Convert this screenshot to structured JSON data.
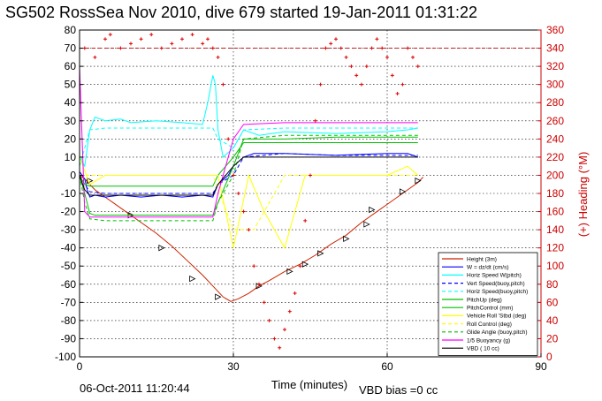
{
  "chart_data": {
    "type": "line",
    "title": "SG502 RossSea Nov 2010, dive 679 started 19-Jan-2011 01:31:22",
    "xlabel": "Time (minutes)",
    "ylabel_right": "(+) Heading (°M)",
    "footer_date": "06-Oct-2011 11:20:44",
    "footer_bias": "VBD bias =0 cc",
    "xlim": [
      0,
      90
    ],
    "ylim": [
      -100,
      80
    ],
    "ylim_right": [
      0,
      360
    ],
    "xticks": [
      0,
      30,
      60,
      90
    ],
    "yticks": [
      80,
      70,
      60,
      50,
      40,
      30,
      20,
      10,
      0,
      -10,
      -20,
      -30,
      -40,
      -50,
      -60,
      -70,
      -80,
      -90,
      -100
    ],
    "yticks_right": [
      360,
      340,
      320,
      300,
      280,
      260,
      240,
      220,
      200,
      180,
      160,
      140,
      120,
      100,
      80,
      60,
      40,
      20,
      0
    ],
    "grid": true,
    "legend_position": "bottom-right",
    "colors": {
      "black": "#000000",
      "red": "#ff0000",
      "blue": "#0000ff",
      "cyan": "#00ffff",
      "green": "#00c000",
      "yellow": "#ffff00",
      "magenta": "#ff00ff",
      "dark_red": "#cc0000",
      "orange_line": "#cc2200",
      "heading": "#dd0000"
    },
    "legend": [
      "Height (3m)",
      "W = dz/dt (cm/s)",
      "Horiz Speed W(pitch)",
      "Vert Speed(buoy,pitch)",
      "Horiz Speed(buoy,pitch)",
      "PitchUp (deg)",
      "PitchControl (mm)",
      "Vehicle Roll 'Stbd (deg)",
      "Roll Control (deg)",
      "Glide Angle (buoy,pitch)",
      "1/5 Buoyancy (g)",
      "VBD ( 10 cc)"
    ],
    "series": [
      {
        "name": "Height (3m)",
        "style": "line-red-markers",
        "x": [
          0,
          1,
          2,
          3,
          5,
          8,
          10,
          12,
          15,
          18,
          21,
          24,
          26,
          28,
          29.5,
          31,
          33,
          35,
          37,
          40,
          43,
          46,
          49,
          52,
          55,
          58,
          61,
          64,
          66,
          67
        ],
        "y": [
          0,
          -2,
          -5,
          -8,
          -12,
          -18,
          -22,
          -26,
          -32,
          -39,
          -47,
          -55,
          -61,
          -67,
          -69.5,
          -68,
          -65,
          -61,
          -58,
          -53,
          -49,
          -44,
          -38,
          -33,
          -26,
          -20,
          -14,
          -8,
          -4,
          -1
        ],
        "markers_x": [
          2,
          10,
          16,
          22,
          27,
          35,
          41,
          44,
          47,
          52,
          56,
          57,
          63,
          66
        ],
        "markers_y": [
          -3,
          -22,
          -40,
          -57,
          -67,
          -61,
          -53,
          -49,
          -43,
          -35,
          -27,
          -19,
          -9,
          -3
        ]
      },
      {
        "name": "W = dz/dt (cm/s)",
        "x": [
          0,
          1,
          1.5,
          2,
          3,
          5,
          8,
          12,
          16,
          20,
          24,
          26,
          27,
          29,
          30,
          32,
          34,
          40,
          50,
          60,
          64,
          66
        ],
        "y": [
          2,
          -2,
          -8,
          -12,
          -11,
          -12,
          -11,
          -12,
          -11,
          -12,
          -11,
          -12,
          -5,
          0,
          5,
          10,
          12,
          12,
          11,
          12,
          12,
          10
        ]
      },
      {
        "name": "Horiz Speed W(pitch)",
        "x": [
          0,
          1,
          2,
          3,
          5,
          8,
          10,
          15,
          20,
          24,
          25,
          26,
          26.5,
          27,
          28,
          30,
          32,
          35,
          40,
          50,
          60,
          64,
          66
        ],
        "y": [
          10,
          5,
          25,
          32,
          30,
          31,
          29,
          30,
          29,
          28,
          40,
          55,
          50,
          25,
          10,
          15,
          25,
          22,
          24,
          23,
          24,
          25,
          26
        ]
      },
      {
        "name": "Vert Speed(buoy,pitch)",
        "x": [
          0,
          1,
          2,
          5,
          10,
          20,
          26,
          27,
          30,
          32,
          40,
          50,
          60,
          66
        ],
        "y": [
          0,
          -5,
          -9,
          -10,
          -10,
          -10,
          -10,
          -5,
          0,
          10,
          12,
          11,
          11,
          11
        ]
      },
      {
        "name": "Horiz Speed(buoy,pitch)",
        "x": [
          0,
          1,
          2,
          5,
          10,
          20,
          26,
          27,
          30,
          32,
          40,
          50,
          60,
          66
        ],
        "y": [
          5,
          15,
          25,
          26,
          26,
          26,
          26,
          20,
          15,
          25,
          26,
          26,
          26,
          26
        ]
      },
      {
        "name": "PitchUp (deg)",
        "x": [
          0,
          1,
          2,
          3,
          10,
          20,
          26,
          27,
          30,
          32,
          40,
          50,
          60,
          66
        ],
        "y": [
          0,
          -10,
          -21,
          -22,
          -22,
          -22,
          -22,
          -15,
          5,
          20,
          20,
          21,
          21,
          21
        ]
      },
      {
        "name": "PitchControl (mm)",
        "x": [
          0,
          1,
          2,
          3,
          10,
          20,
          26,
          27,
          30,
          32,
          40,
          50,
          60,
          66
        ],
        "y": [
          0,
          -5,
          -6,
          -6,
          -6,
          -6,
          -6,
          0,
          10,
          18,
          18,
          18,
          18,
          18
        ]
      },
      {
        "name": "Vehicle Roll 'Stbd (deg)",
        "x": [
          0,
          2,
          5,
          8,
          10,
          14,
          18,
          22,
          26,
          27,
          30,
          33,
          36,
          40,
          44,
          48,
          52,
          56,
          60,
          64,
          66
        ],
        "y": [
          10,
          -5,
          0,
          0,
          0,
          0,
          0,
          0,
          0,
          0,
          -40,
          0,
          -20,
          -40,
          0,
          0,
          0,
          0,
          0,
          5,
          0
        ]
      },
      {
        "name": "Roll Control (deg)",
        "x": [
          0,
          5,
          10,
          20,
          26,
          30,
          34,
          40,
          50,
          60,
          66
        ],
        "y": [
          0,
          0,
          0,
          0,
          0,
          -30,
          -30,
          0,
          0,
          0,
          0
        ]
      },
      {
        "name": "Glide Angle (buoy,pitch)",
        "x": [
          0,
          1,
          2,
          5,
          10,
          20,
          26,
          27,
          30,
          32,
          40,
          50,
          60,
          66
        ],
        "y": [
          0,
          -15,
          -24,
          -25,
          -25,
          -25,
          -25,
          -15,
          0,
          20,
          22,
          22,
          22,
          22
        ]
      },
      {
        "name": "1/5 Buoyancy (g)",
        "x": [
          0,
          1,
          2,
          5,
          10,
          20,
          26,
          27,
          30,
          32,
          40,
          50,
          60,
          66
        ],
        "y": [
          60,
          -20,
          -23,
          -23,
          -23,
          -23,
          -23,
          -10,
          20,
          28,
          29,
          29,
          29,
          29
        ]
      },
      {
        "name": "VBD ( 10 cc)",
        "x": [
          0,
          1,
          2,
          5,
          10,
          20,
          26,
          27,
          30,
          32,
          40,
          50,
          60,
          66
        ],
        "y": [
          0,
          -8,
          -11,
          -11,
          -11,
          -11,
          -11,
          -5,
          5,
          10,
          10,
          10,
          10,
          10
        ]
      },
      {
        "name": "Heading",
        "axis": "right",
        "x": [
          1,
          3,
          5,
          6,
          8,
          10,
          12,
          14,
          16,
          18,
          20,
          22,
          24,
          25,
          26,
          27,
          28,
          29,
          30,
          31,
          32,
          33,
          34,
          35,
          36,
          37,
          38,
          39,
          40,
          41,
          42,
          43,
          44,
          45,
          46,
          47,
          48,
          49,
          50,
          51,
          52,
          53,
          54,
          55,
          56,
          57,
          58,
          59,
          60,
          61,
          62,
          63,
          64,
          65,
          66
        ],
        "y": [
          340,
          330,
          350,
          355,
          340,
          345,
          350,
          355,
          340,
          345,
          350,
          355,
          345,
          350,
          340,
          330,
          300,
          240,
          200,
          180,
          160,
          140,
          100,
          80,
          60,
          40,
          20,
          10,
          30,
          50,
          70,
          100,
          150,
          200,
          260,
          300,
          340,
          345,
          350,
          340,
          330,
          320,
          310,
          300,
          320,
          340,
          350,
          340,
          330,
          310,
          290,
          300,
          340,
          330,
          320
        ]
      }
    ]
  }
}
